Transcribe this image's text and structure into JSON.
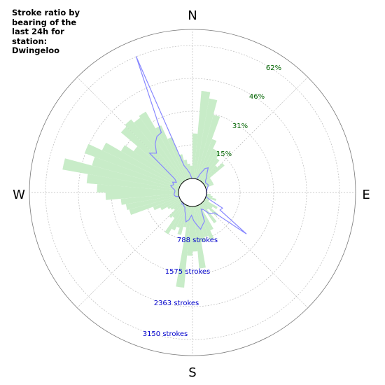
{
  "chart_data": {
    "type": "polar",
    "title": "Stroke ratio by bearing of the last 24h for station: Dwingeloo",
    "directions": [
      "N",
      "E",
      "S",
      "W"
    ],
    "ratio_axis": {
      "unit": "%",
      "ticks": [
        15,
        31,
        46,
        62
      ],
      "tick_labels": [
        "15%",
        "31%",
        "46%",
        "62%"
      ]
    },
    "count_axis": {
      "unit": "strokes",
      "ticks": [
        788,
        1575,
        2363,
        3150
      ],
      "tick_labels": [
        "788 strokes",
        "1575 strokes",
        "2363 strokes",
        "3150 strokes"
      ]
    },
    "bearing_bin_deg": 5,
    "series": [
      {
        "kind": "bars",
        "axis": "ratio",
        "color": "#c8ecc8",
        "values": [
          21,
          41,
          38,
          31,
          20,
          16,
          16,
          13,
          10,
          13,
          4,
          4,
          4,
          4,
          0,
          0,
          0,
          0,
          0,
          2,
          3,
          5,
          2,
          2,
          7,
          5,
          9,
          4,
          11,
          3,
          13,
          17,
          15,
          17,
          29,
          21,
          23,
          38,
          10,
          14,
          11,
          13,
          16,
          8,
          9,
          5,
          6,
          7,
          10,
          13,
          24,
          25,
          27,
          34,
          38,
          43,
          55,
          42,
          47,
          40,
          32,
          27,
          37,
          38,
          36,
          37,
          28,
          21,
          12,
          9,
          7,
          6
        ]
      },
      {
        "kind": "line",
        "axis": "count",
        "color": "#8888ff",
        "values": [
          0,
          0,
          0,
          0,
          150,
          310,
          360,
          230,
          170,
          90,
          55,
          60,
          80,
          70,
          40,
          20,
          12,
          6,
          5,
          5,
          5,
          10,
          110,
          470,
          440,
          1280,
          380,
          340,
          280,
          150,
          110,
          410,
          470,
          560,
          440,
          340,
          210,
          320,
          380,
          220,
          140,
          60,
          50,
          15,
          40,
          0,
          0,
          0,
          0,
          0,
          0,
          80,
          110,
          100,
          85,
          90,
          150,
          210,
          150,
          200,
          120,
          200,
          1050,
          930,
          1120,
          1240,
          1270,
          3160,
          340,
          220,
          120,
          0
        ]
      }
    ],
    "grid": true
  }
}
